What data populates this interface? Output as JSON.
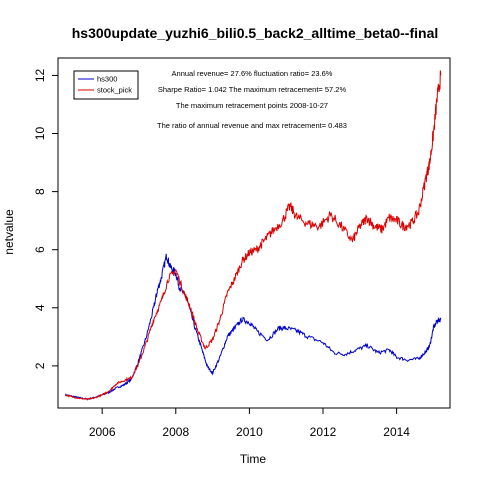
{
  "chart_data": {
    "type": "line",
    "title": "hs300update_yuzhi6_bili0.5_back2_alltime_beta0--final",
    "xlabel": "Time",
    "ylabel": "netvalue",
    "xlim": [
      2004.8,
      2015.45
    ],
    "ylim": [
      0.55,
      12.6
    ],
    "x_ticks": [
      2006,
      2008,
      2010,
      2012,
      2014
    ],
    "y_ticks": [
      2,
      4,
      6,
      8,
      10,
      12
    ],
    "grid": false,
    "legend_position": "top-left",
    "annotations": [
      "Annual revenue= 27.6% fluctuation ratio= 23.6%",
      "Sharpe Ratio= 1.042 The maximum retracement= 57.2%",
      "The maximum retracement points 2008-10-27",
      "The ratio of annual revenue and max retracement= 0.483"
    ],
    "series": [
      {
        "name": "hs300",
        "color": "#0000cc",
        "x": [
          2005.0,
          2005.2,
          2005.4,
          2005.6,
          2005.8,
          2006.0,
          2006.2,
          2006.4,
          2006.6,
          2006.8,
          2007.0,
          2007.2,
          2007.4,
          2007.5,
          2007.6,
          2007.75,
          2007.85,
          2008.0,
          2008.1,
          2008.3,
          2008.5,
          2008.7,
          2008.85,
          2009.0,
          2009.2,
          2009.4,
          2009.6,
          2009.8,
          2010.0,
          2010.2,
          2010.5,
          2010.8,
          2011.0,
          2011.3,
          2011.6,
          2012.0,
          2012.3,
          2012.6,
          2012.9,
          2013.2,
          2013.5,
          2013.8,
          2014.0,
          2014.3,
          2014.6,
          2014.8,
          2014.9,
          2015.0,
          2015.1,
          2015.2
        ],
        "y": [
          1.0,
          0.95,
          0.9,
          0.85,
          0.92,
          1.0,
          1.1,
          1.25,
          1.35,
          1.55,
          2.2,
          3.0,
          4.0,
          4.6,
          5.0,
          5.8,
          5.4,
          5.2,
          4.7,
          4.3,
          3.4,
          2.6,
          2.0,
          1.75,
          2.3,
          3.0,
          3.3,
          3.6,
          3.5,
          3.2,
          2.9,
          3.3,
          3.3,
          3.2,
          3.0,
          2.8,
          2.45,
          2.4,
          2.55,
          2.7,
          2.45,
          2.55,
          2.3,
          2.2,
          2.25,
          2.5,
          2.7,
          3.3,
          3.55,
          3.6
        ]
      },
      {
        "name": "stock_pick",
        "color": "#dd0000",
        "x": [
          2005.0,
          2005.2,
          2005.4,
          2005.6,
          2005.8,
          2006.0,
          2006.2,
          2006.4,
          2006.6,
          2006.8,
          2007.0,
          2007.2,
          2007.4,
          2007.6,
          2007.8,
          2008.0,
          2008.2,
          2008.4,
          2008.6,
          2008.8,
          2009.0,
          2009.2,
          2009.4,
          2009.6,
          2009.8,
          2010.0,
          2010.2,
          2010.4,
          2010.6,
          2010.9,
          2011.1,
          2011.3,
          2011.6,
          2011.9,
          2012.2,
          2012.5,
          2012.8,
          2013.0,
          2013.2,
          2013.4,
          2013.6,
          2013.8,
          2014.0,
          2014.2,
          2014.4,
          2014.6,
          2014.8,
          2014.9,
          2015.0,
          2015.1,
          2015.2
        ],
        "y": [
          1.0,
          0.93,
          0.88,
          0.85,
          0.9,
          1.0,
          1.15,
          1.4,
          1.5,
          1.6,
          2.1,
          2.8,
          3.6,
          4.2,
          5.0,
          5.3,
          4.6,
          4.0,
          3.2,
          2.6,
          2.9,
          3.6,
          4.5,
          5.0,
          5.6,
          5.9,
          6.0,
          6.3,
          6.6,
          7.0,
          7.5,
          7.1,
          6.9,
          6.8,
          7.2,
          6.8,
          6.3,
          6.8,
          7.1,
          6.8,
          6.7,
          7.1,
          7.0,
          6.8,
          6.9,
          7.3,
          8.5,
          9.0,
          10.0,
          11.2,
          12.0
        ]
      }
    ]
  }
}
